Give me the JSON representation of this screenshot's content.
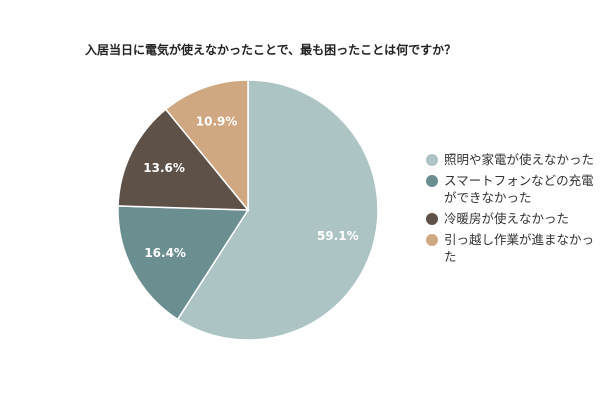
{
  "chart_data": {
    "type": "pie",
    "title": "入居当日に電気が使えなかったことで、最も困ったことは何ですか？",
    "categories": [
      "照明や家電が使えなかった",
      "スマートフォンなどの充電ができなかった",
      "冷暖房が使えなかった",
      "引っ越し作業が進まなかった"
    ],
    "values": [
      59.1,
      16.4,
      13.6,
      10.9
    ],
    "value_labels": [
      "59.1%",
      "16.4%",
      "13.6%",
      "10.9%"
    ],
    "colors": [
      "#adc4c4",
      "#6b8e91",
      "#5e5148",
      "#cfa882"
    ]
  }
}
